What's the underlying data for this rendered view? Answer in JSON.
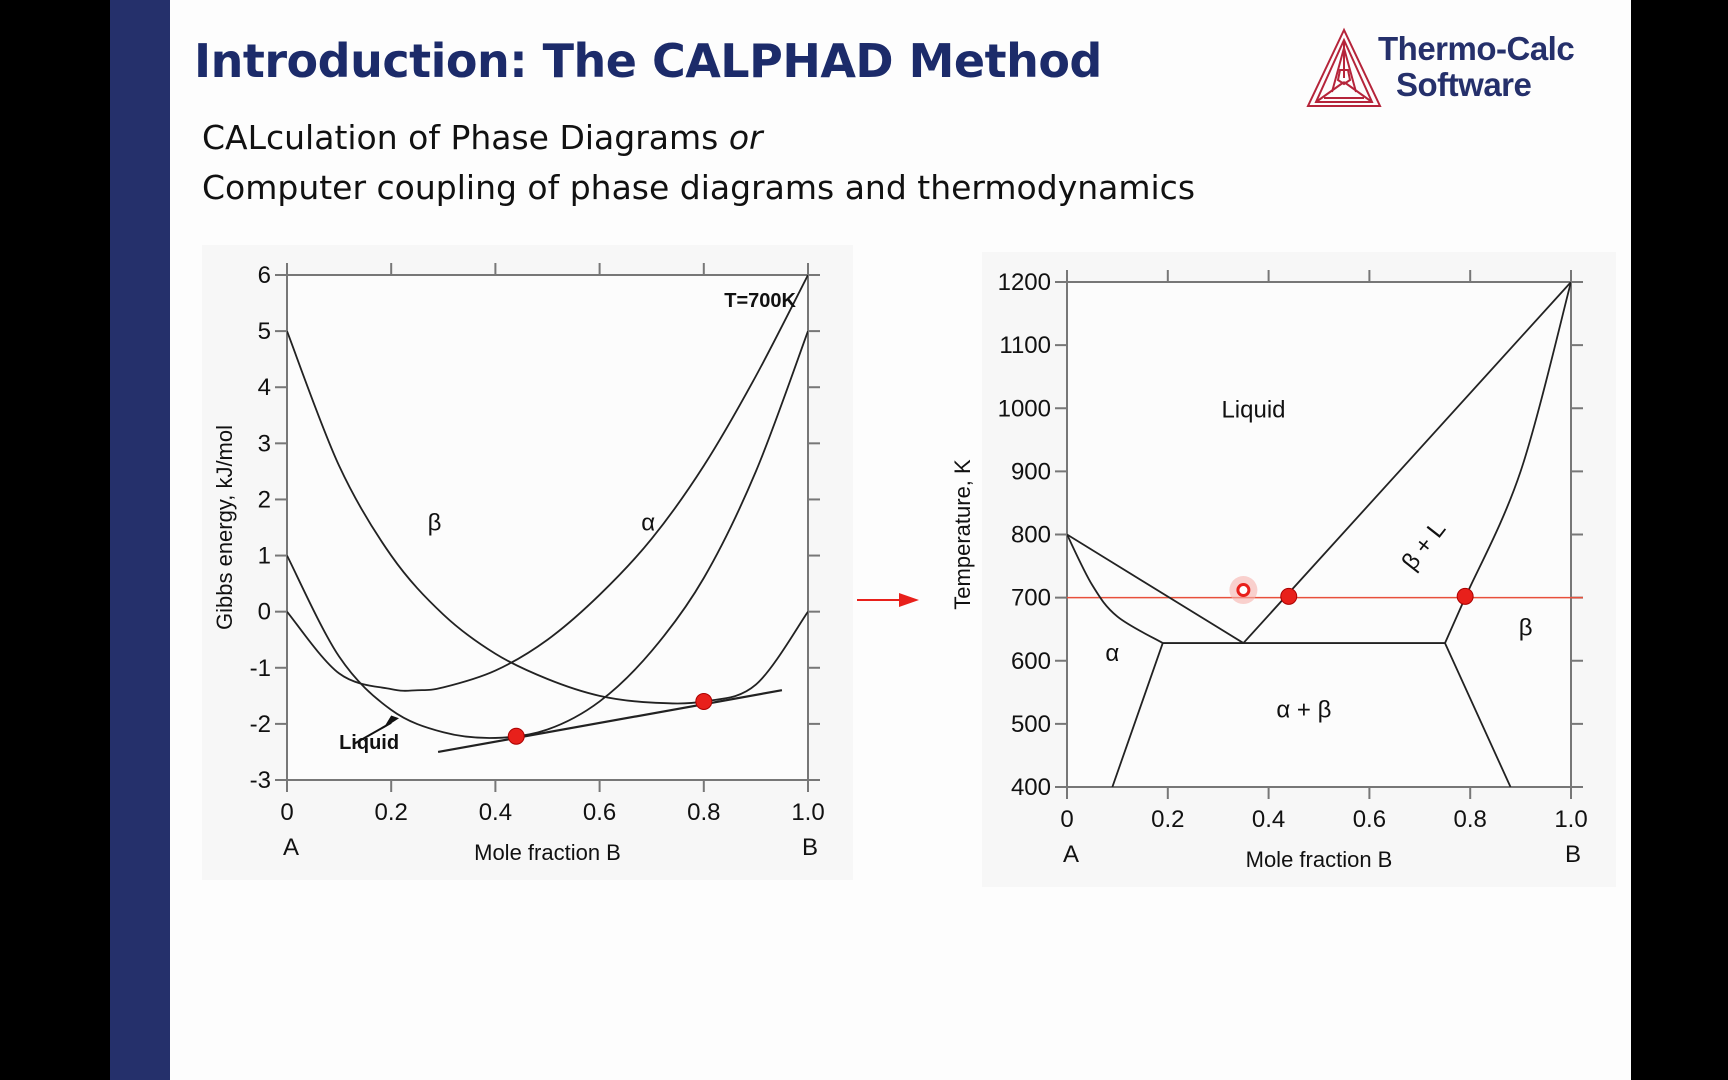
{
  "slide": {
    "title": "Introduction: The CALPHAD Method",
    "subtitle_line1_main": "CALculation of Phase Diagrams ",
    "subtitle_line1_italic": "or",
    "subtitle_line2": "Computer coupling of phase diagrams and thermodynamics",
    "logo": {
      "line1": "Thermo-Calc",
      "line2": "Software",
      "mark_color": "#b5243a",
      "text_color": "#25306b"
    },
    "accent_color": "#25306b",
    "title_color": "#1c2b6a"
  },
  "chart_data": [
    {
      "type": "line",
      "title": "",
      "annotation": "T=700K",
      "xlabel": "Mole fraction B",
      "ylabel": "Gibbs energy, kJ/mol",
      "xlim": [
        0,
        1.0
      ],
      "ylim": [
        -3,
        6
      ],
      "xticks": [
        "0",
        "0.2",
        "0.4",
        "0.6",
        "0.8",
        "1.0"
      ],
      "yticks": [
        "6",
        "5",
        "4",
        "3",
        "2",
        "1",
        "0",
        "-1",
        "-2",
        "-3"
      ],
      "x_end_labels": {
        "left": "A",
        "right": "B"
      },
      "series": [
        {
          "name": "α",
          "x": [
            0,
            0.1,
            0.2,
            0.25,
            0.3,
            0.4,
            0.5,
            0.6,
            0.7,
            0.8,
            0.9,
            1.0
          ],
          "values": [
            0,
            -1.1,
            -1.38,
            -1.4,
            -1.35,
            -1.05,
            -0.5,
            0.3,
            1.3,
            2.6,
            4.2,
            6.0
          ]
        },
        {
          "name": "β",
          "x": [
            0,
            0.1,
            0.2,
            0.3,
            0.4,
            0.5,
            0.6,
            0.7,
            0.8,
            0.9,
            1.0
          ],
          "values": [
            5.0,
            2.6,
            1.0,
            -0.05,
            -0.75,
            -1.2,
            -1.5,
            -1.62,
            -1.6,
            -1.3,
            0
          ]
        },
        {
          "name": "Liquid",
          "x": [
            0,
            0.1,
            0.2,
            0.3,
            0.4,
            0.5,
            0.6,
            0.7,
            0.8,
            0.9,
            1.0
          ],
          "values": [
            1.0,
            -0.8,
            -1.75,
            -2.15,
            -2.25,
            -2.1,
            -1.6,
            -0.7,
            0.6,
            2.5,
            5.0
          ]
        },
        {
          "name": "common tangent",
          "x": [
            0.29,
            0.95
          ],
          "values": [
            -2.5,
            -1.4
          ]
        }
      ],
      "points": [
        {
          "x": 0.44,
          "y": -2.22,
          "color": "#e8201b"
        },
        {
          "x": 0.8,
          "y": -1.6,
          "color": "#e8201b"
        }
      ],
      "curve_labels": [
        {
          "text": "β",
          "x": 0.27,
          "y": 1.45
        },
        {
          "text": "α",
          "x": 0.68,
          "y": 1.45
        },
        {
          "text": "Liquid",
          "x": 0.1,
          "y": -2.45
        }
      ]
    },
    {
      "type": "line",
      "title": "",
      "xlabel": "Mole fraction B",
      "ylabel": "Temperature, K",
      "xlim": [
        0,
        1.0
      ],
      "ylim": [
        400,
        1200
      ],
      "xticks": [
        "0",
        "0.2",
        "0.4",
        "0.6",
        "0.8",
        "1.0"
      ],
      "yticks": [
        "1200",
        "1100",
        "1000",
        "900",
        "800",
        "700",
        "600",
        "500",
        "400"
      ],
      "x_end_labels": {
        "left": "A",
        "right": "B"
      },
      "isotherm": {
        "T": 700,
        "color": "#e8503b"
      },
      "eutectic": {
        "T": 628,
        "x": [
          0.19,
          0.35,
          0.75
        ]
      },
      "phase_labels": [
        {
          "text": "Liquid",
          "x": 0.37,
          "y": 985
        },
        {
          "text": "β + L",
          "x": 0.72,
          "y": 775
        },
        {
          "text": "α",
          "x": 0.09,
          "y": 600
        },
        {
          "text": "α + β",
          "x": 0.47,
          "y": 510
        },
        {
          "text": "β",
          "x": 0.91,
          "y": 640
        }
      ],
      "boundaries": [
        {
          "name": "liquidus-A",
          "x": [
            0,
            0.35
          ],
          "values": [
            800,
            628
          ]
        },
        {
          "name": "solidus-A",
          "x": [
            0,
            0.05,
            0.1,
            0.19
          ],
          "values": [
            800,
            720,
            670,
            628
          ]
        },
        {
          "name": "solvus-A",
          "x": [
            0.19,
            0.09
          ],
          "values": [
            628,
            400
          ]
        },
        {
          "name": "liquidus-B",
          "x": [
            0.35,
            1.0
          ],
          "values": [
            628,
            1200
          ]
        },
        {
          "name": "solidus-B",
          "x": [
            0.75,
            0.79,
            0.9,
            1.0
          ],
          "values": [
            628,
            700,
            900,
            1200
          ]
        },
        {
          "name": "solvus-B",
          "x": [
            0.75,
            0.88
          ],
          "values": [
            628,
            400
          ]
        }
      ],
      "points": [
        {
          "x": 0.44,
          "y": 702,
          "color": "#e8201b"
        },
        {
          "x": 0.79,
          "y": 702,
          "color": "#e8201b"
        }
      ],
      "cursor_marker": {
        "x": 0.35,
        "y": 712
      }
    }
  ],
  "arrow": {
    "color": "#e8201b"
  }
}
